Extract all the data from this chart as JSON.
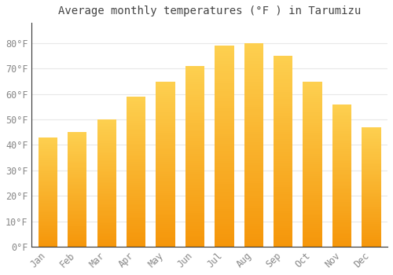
{
  "title": "Average monthly temperatures (°F ) in Tarumizu",
  "months": [
    "Jan",
    "Feb",
    "Mar",
    "Apr",
    "May",
    "Jun",
    "Jul",
    "Aug",
    "Sep",
    "Oct",
    "Nov",
    "Dec"
  ],
  "values": [
    43,
    45,
    50,
    59,
    65,
    71,
    79,
    80,
    75,
    65,
    56,
    47
  ],
  "ylim": [
    0,
    88
  ],
  "yticks": [
    0,
    10,
    20,
    30,
    40,
    50,
    60,
    70,
    80
  ],
  "ytick_labels": [
    "0°F",
    "10°F",
    "20°F",
    "30°F",
    "40°F",
    "50°F",
    "60°F",
    "70°F",
    "80°F"
  ],
  "background_color": "#FFFFFF",
  "bar_color_light": "#FDCD45",
  "bar_color_dark": "#F5960A",
  "grid_color": "#E8E8E8",
  "title_fontsize": 10,
  "tick_fontsize": 8.5,
  "font_family": "monospace",
  "title_color": "#444444",
  "tick_color": "#888888"
}
